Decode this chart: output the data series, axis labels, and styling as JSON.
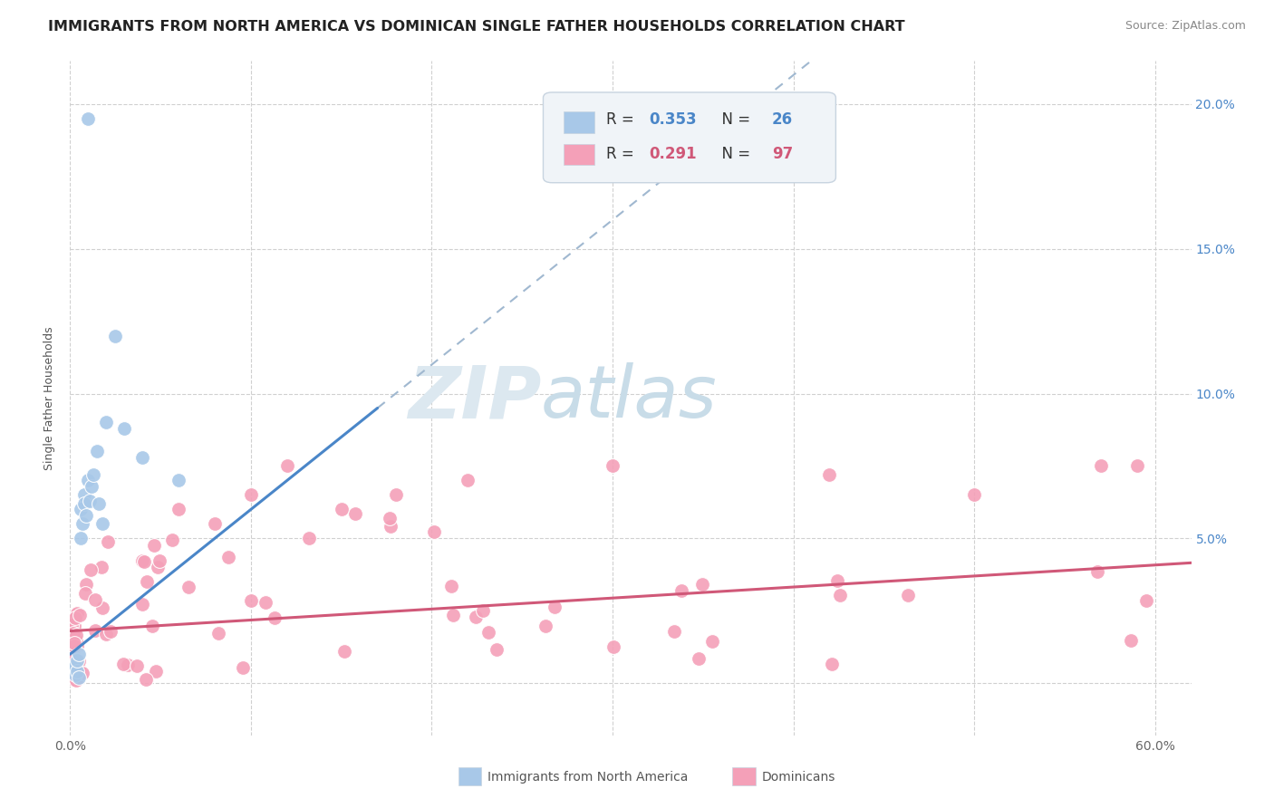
{
  "title": "IMMIGRANTS FROM NORTH AMERICA VS DOMINICAN SINGLE FATHER HOUSEHOLDS CORRELATION CHART",
  "source": "Source: ZipAtlas.com",
  "ylabel": "Single Father Households",
  "xlim": [
    0.0,
    0.62
  ],
  "ylim": [
    -0.018,
    0.215
  ],
  "x_ticks": [
    0.0,
    0.1,
    0.2,
    0.3,
    0.4,
    0.5,
    0.6
  ],
  "y_ticks": [
    0.0,
    0.05,
    0.1,
    0.15,
    0.2
  ],
  "x_tick_labels": [
    "0.0%",
    "",
    "",
    "",
    "",
    "",
    "60.0%"
  ],
  "y_tick_labels_right": [
    "",
    "5.0%",
    "10.0%",
    "15.0%",
    "20.0%"
  ],
  "grid_color": "#d0d0d0",
  "background_color": "#ffffff",
  "blue_dot_color": "#a8c8e8",
  "pink_dot_color": "#f4a0b8",
  "blue_line_color": "#4a86c8",
  "pink_line_color": "#d05878",
  "dash_line_color": "#a0b8d0",
  "watermark_color": "#dce8f0",
  "legend_box_color": "#f0f4f8",
  "legend_border_color": "#c8d4e0",
  "R1_value_color": "#4a86c8",
  "R2_value_color": "#d05878",
  "y_tick_color": "#4a86c8",
  "title_fontsize": 11.5,
  "source_fontsize": 9,
  "tick_fontsize": 10,
  "ylabel_fontsize": 9,
  "legend_fontsize": 12
}
